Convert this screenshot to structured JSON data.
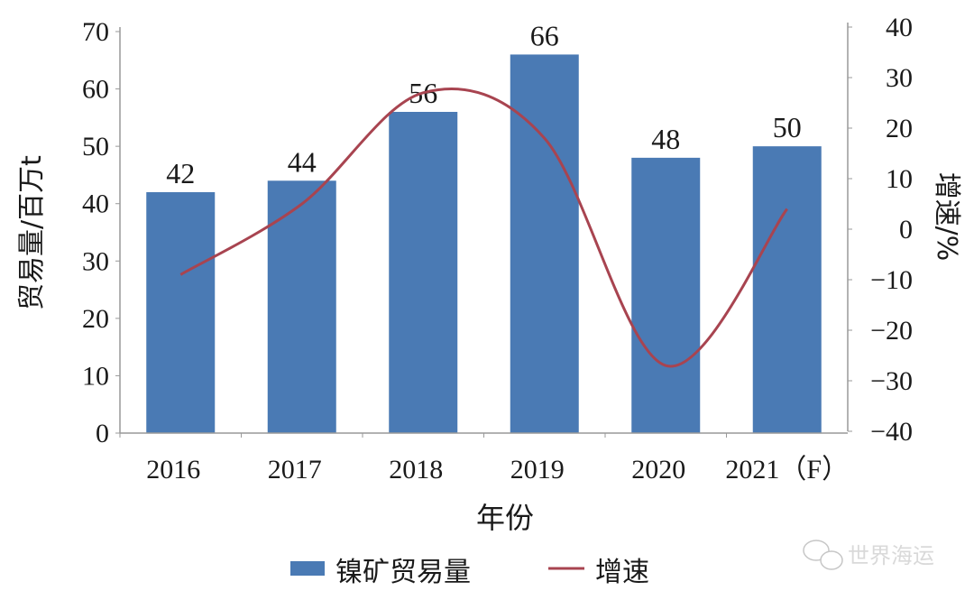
{
  "chart_data": {
    "type": "bar+line",
    "categories": [
      "2016",
      "2017",
      "2018",
      "2019",
      "2020",
      "2021（F）"
    ],
    "xlabel": "年份",
    "ylabel": "贸易量/百万t",
    "y2label": "增速/%",
    "ylim": [
      0,
      70
    ],
    "y_ticks": [
      0,
      10,
      20,
      30,
      40,
      50,
      60,
      70
    ],
    "y2lim": [
      -40,
      40
    ],
    "y2_ticks": [
      -40,
      -30,
      -20,
      -10,
      0,
      10,
      20,
      30,
      40
    ],
    "grid": false,
    "legend_position": "bottom",
    "series": [
      {
        "name": "镍矿贸易量",
        "type": "bar",
        "axis": "left",
        "values": [
          42,
          44,
          56,
          66,
          48,
          50
        ],
        "data_labels": [
          "42",
          "44",
          "56",
          "66",
          "48",
          "50"
        ],
        "color": "#4a7ab4"
      },
      {
        "name": "增速",
        "type": "line",
        "axis": "right",
        "smooth": true,
        "values": [
          -9,
          5,
          27,
          18,
          -27,
          4
        ],
        "color": "#a84450"
      }
    ]
  },
  "watermark": {
    "text": "世界海运",
    "icon": "wechat-icon"
  }
}
